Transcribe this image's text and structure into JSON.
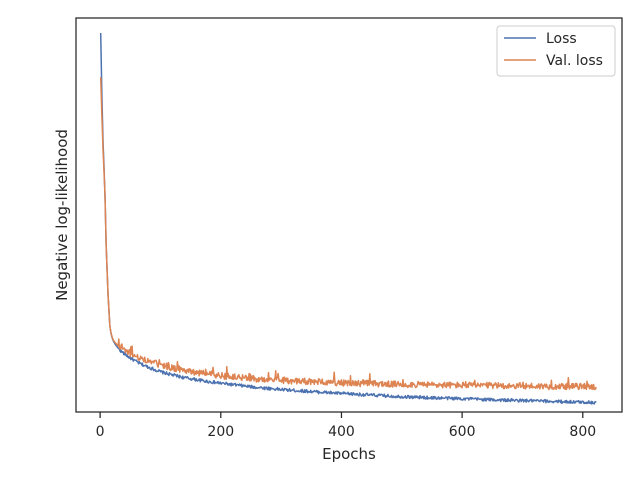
{
  "chart_data": {
    "type": "line",
    "title": "",
    "xlabel": "Epochs",
    "ylabel": "Negative log-likelihood",
    "xlim": [
      -40,
      865
    ],
    "ylim": [
      0,
      1
    ],
    "x_ticks": [
      0,
      200,
      400,
      600,
      800
    ],
    "x_tick_labels": [
      "0",
      "200",
      "400",
      "600",
      "800"
    ],
    "y_ticks_shown": false,
    "grid": false,
    "legend_position": "top-right",
    "series": [
      {
        "name": "Loss",
        "color": "#4c72b0",
        "x": [
          1,
          3,
          5,
          8,
          10,
          13,
          16,
          18,
          20,
          22,
          25,
          30,
          35,
          40,
          50,
          60,
          70,
          80,
          90,
          100,
          120,
          140,
          160,
          180,
          200,
          250,
          300,
          350,
          400,
          450,
          500,
          550,
          600,
          650,
          700,
          750,
          800,
          822
        ],
        "y": [
          0.962,
          0.8,
          0.68,
          0.55,
          0.42,
          0.3,
          0.22,
          0.2,
          0.188,
          0.18,
          0.172,
          0.162,
          0.154,
          0.148,
          0.137,
          0.128,
          0.12,
          0.114,
          0.108,
          0.102,
          0.094,
          0.087,
          0.082,
          0.077,
          0.073,
          0.064,
          0.057,
          0.052,
          0.047,
          0.043,
          0.039,
          0.036,
          0.034,
          0.031,
          0.029,
          0.027,
          0.025,
          0.024
        ]
      },
      {
        "name": "Val. loss",
        "color": "#dd8452",
        "x": [
          1,
          3,
          5,
          8,
          10,
          13,
          16,
          18,
          20,
          22,
          25,
          30,
          35,
          40,
          50,
          60,
          70,
          80,
          90,
          100,
          120,
          140,
          160,
          180,
          200,
          250,
          300,
          350,
          400,
          450,
          500,
          550,
          600,
          650,
          700,
          750,
          800,
          822
        ],
        "y": [
          0.85,
          0.75,
          0.66,
          0.55,
          0.42,
          0.3,
          0.22,
          0.2,
          0.19,
          0.182,
          0.176,
          0.168,
          0.161,
          0.156,
          0.148,
          0.141,
          0.135,
          0.13,
          0.125,
          0.12,
          0.112,
          0.106,
          0.1,
          0.096,
          0.092,
          0.085,
          0.08,
          0.077,
          0.074,
          0.072,
          0.07,
          0.069,
          0.068,
          0.067,
          0.066,
          0.065,
          0.065,
          0.064
        ]
      }
    ]
  }
}
